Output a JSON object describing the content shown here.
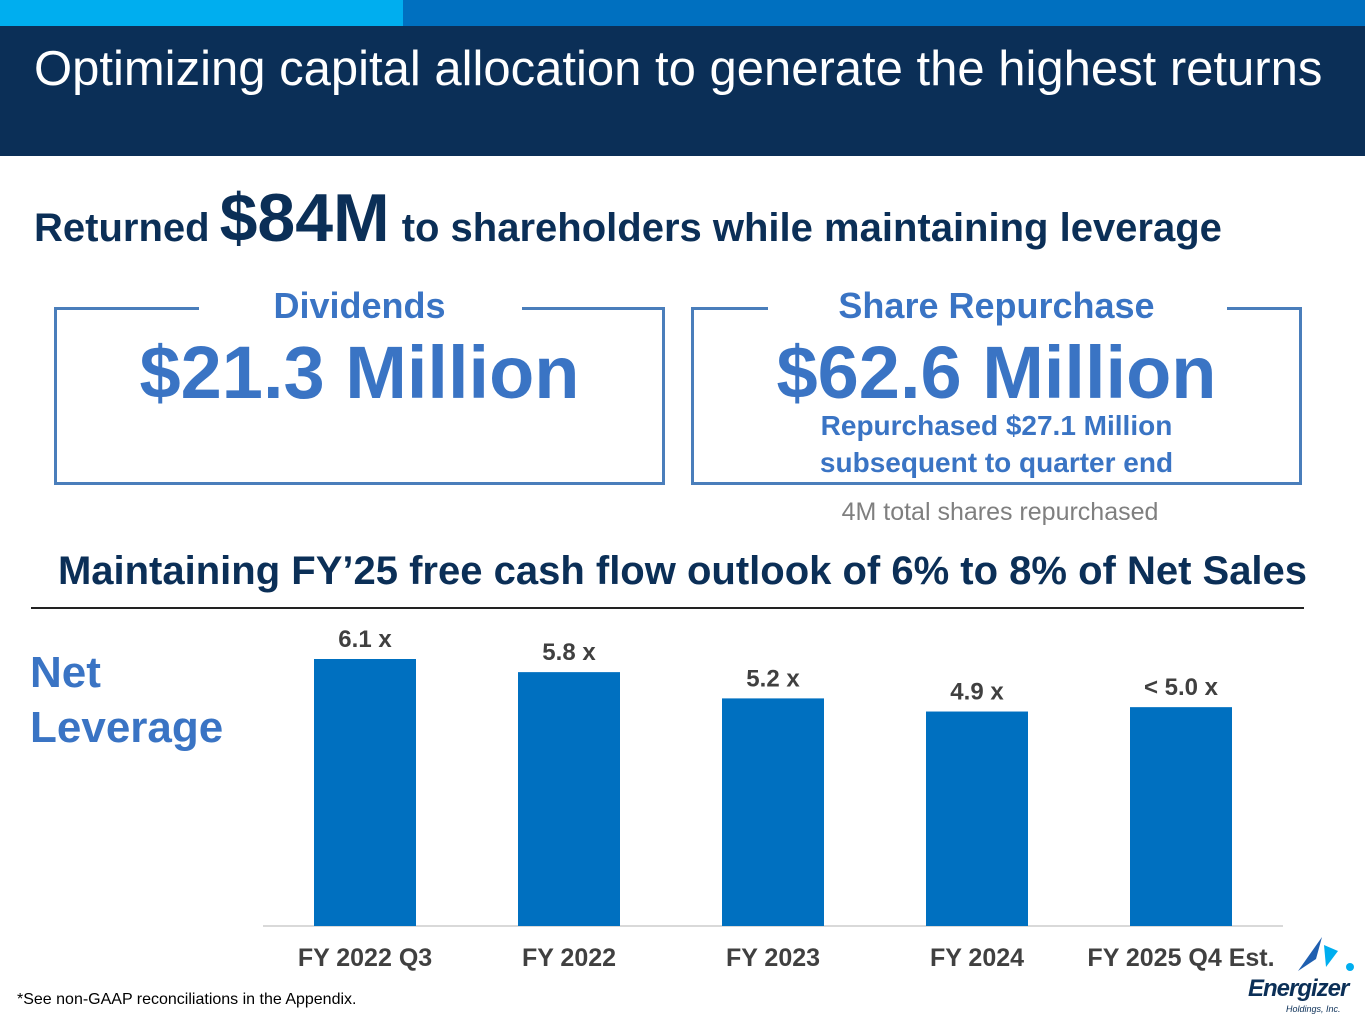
{
  "title": "Optimizing capital allocation to generate the highest returns",
  "headline": {
    "prefix": "Returned",
    "amount": "$84M",
    "suffix": "to shareholders while maintaining leverage"
  },
  "dividends": {
    "label": "Dividends",
    "value": "$21.3 Million"
  },
  "repurchase": {
    "label": "Share Repurchase",
    "value": "$62.6 Million",
    "note_line1": "Repurchased $27.1 Million",
    "note_line2": "subsequent to quarter end",
    "shares_note": "4M total shares repurchased"
  },
  "fcf_outlook": "Maintaining FY’25 free cash flow outlook of 6% to 8% of Net Sales",
  "leverage_label_line1": "Net",
  "leverage_label_line2": "Leverage",
  "footnote": "*See non-GAAP reconciliations in the Appendix.",
  "logo": {
    "name": "Energizer",
    "sub": "Holdings, Inc."
  },
  "colors": {
    "navy": "#0b2f57",
    "bar": "#0070c0",
    "accent": "#3a74c4"
  },
  "chart_data": {
    "type": "bar",
    "title": "Net Leverage",
    "categories": [
      "FY 2022 Q3",
      "FY 2022",
      "FY 2023",
      "FY 2024",
      "FY 2025 Q4 Est."
    ],
    "values": [
      6.1,
      5.8,
      5.2,
      4.9,
      5.0
    ],
    "data_labels": [
      "6.1 x",
      "5.8 x",
      "5.2 x",
      "4.9 x",
      "< 5.0 x"
    ],
    "ylim": [
      0,
      6.1
    ],
    "xlabel": "",
    "ylabel": "",
    "grid": false
  }
}
